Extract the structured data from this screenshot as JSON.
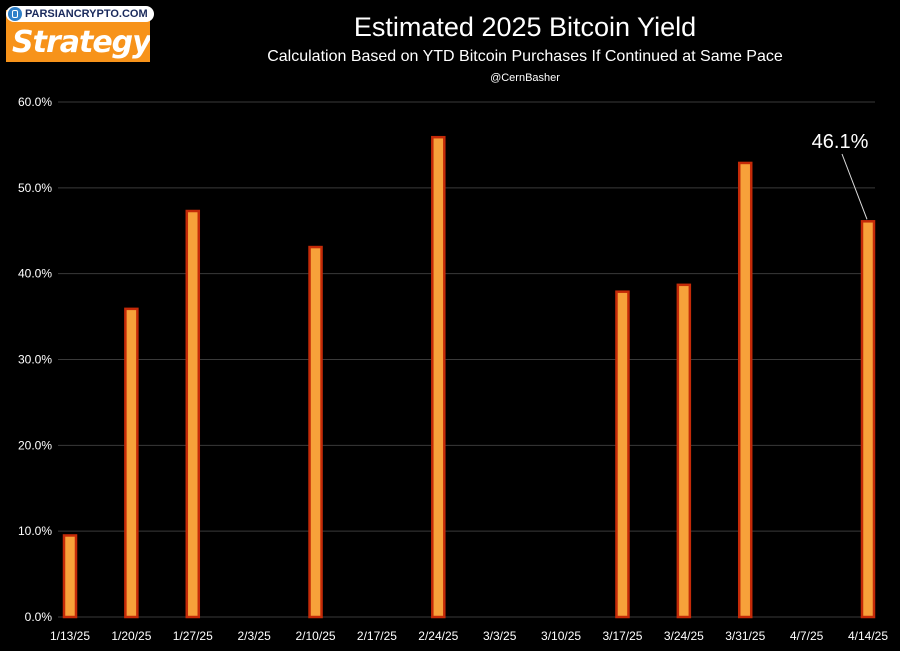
{
  "watermark": {
    "text": "PARSIANCRYPTO.COM",
    "icon": "phone-icon"
  },
  "logo": {
    "text": "Strategy",
    "mark": "₿",
    "color": "#f7931a"
  },
  "chart_data": {
    "type": "bar",
    "title": "Estimated 2025 Bitcoin Yield",
    "subtitle": "Calculation Based on YTD Bitcoin Purchases If Continued at Same Pace",
    "credit": "@CernBasher",
    "xlabel": "",
    "ylabel": "",
    "ylim": [
      0,
      60
    ],
    "yticks": [
      0,
      10,
      20,
      30,
      40,
      50,
      60
    ],
    "ytick_labels": [
      "0.0%",
      "10.0%",
      "20.0%",
      "30.0%",
      "40.0%",
      "50.0%",
      "60.0%"
    ],
    "categories": [
      "1/13/25",
      "1/20/25",
      "1/27/25",
      "2/3/25",
      "2/10/25",
      "2/17/25",
      "2/24/25",
      "3/3/25",
      "3/10/25",
      "3/17/25",
      "3/24/25",
      "3/31/25",
      "4/7/25",
      "4/14/25"
    ],
    "values": [
      9.5,
      35.9,
      47.3,
      null,
      43.1,
      null,
      55.9,
      null,
      null,
      37.9,
      38.7,
      52.9,
      null,
      46.1
    ],
    "annotation": {
      "text": "46.1%",
      "category": "4/14/25"
    },
    "grid": true,
    "colors": {
      "bar_fill": "#f7a13a",
      "bar_stroke": "#c42a08",
      "grid": "#3a3a3a",
      "background": "#000000"
    }
  }
}
